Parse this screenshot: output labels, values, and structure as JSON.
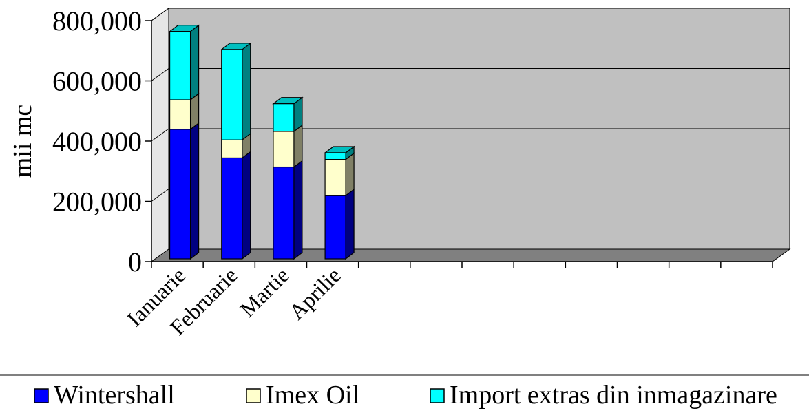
{
  "chart_data": {
    "type": "bar",
    "stacked": true,
    "three_d": true,
    "title": "",
    "xlabel": "",
    "ylabel": "mii mc",
    "ylim": [
      0,
      800000
    ],
    "yticks": [
      0,
      200000,
      400000,
      600000,
      800000
    ],
    "ytick_labels": [
      "0",
      "200,000",
      "400,000",
      "600,000",
      "800,000"
    ],
    "categories": [
      "Ianuarie",
      "Februarie",
      "Martie",
      "Aprilie"
    ],
    "total_category_slots": 12,
    "series": [
      {
        "name": "Wintershall",
        "color": "#0000FF",
        "values": [
          430000,
          335000,
          305000,
          210000
        ]
      },
      {
        "name": "Imex Oil",
        "color": "#FFFFCC",
        "values": [
          98000,
          60000,
          118000,
          120000
        ]
      },
      {
        "name": "Import extras din inmagazinare",
        "color": "#00FFFF",
        "values": [
          227000,
          300000,
          92000,
          22000
        ]
      }
    ],
    "grid": true,
    "legend_position": "bottom",
    "colors": {
      "wall": "#C0C0C0",
      "floor": "#808080",
      "side_wall": "#E6E6E6"
    }
  }
}
